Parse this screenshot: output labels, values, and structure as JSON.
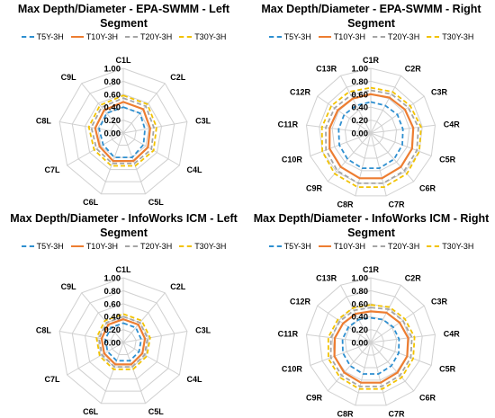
{
  "chart_data": [
    {
      "type": "radar",
      "title": "Max Depth/Diameter - EPA-SWMM - Left Segment",
      "axes": [
        "C1L",
        "C2L",
        "C3L",
        "C4L",
        "C5L",
        "C6L",
        "C7L",
        "C8L",
        "C9L"
      ],
      "rlim": [
        0,
        1
      ],
      "ticks": [
        "0.00",
        "0.20",
        "0.40",
        "0.60",
        "0.80",
        "1.00"
      ],
      "legend_position": "top",
      "grid": true,
      "series": [
        {
          "name": "T5Y-3H",
          "color": "#2e8fd0",
          "dash": "dashed",
          "values": [
            0.4,
            0.4,
            0.34,
            0.36,
            0.4,
            0.4,
            0.36,
            0.38,
            0.4
          ]
        },
        {
          "name": "T10Y-3H",
          "color": "#ed7d31",
          "dash": "solid",
          "values": [
            0.48,
            0.48,
            0.42,
            0.44,
            0.46,
            0.46,
            0.42,
            0.44,
            0.46
          ]
        },
        {
          "name": "T20Y-3H",
          "color": "#a5a5a5",
          "dash": "dashed",
          "values": [
            0.54,
            0.54,
            0.48,
            0.5,
            0.5,
            0.5,
            0.48,
            0.5,
            0.52
          ]
        },
        {
          "name": "T30Y-3H",
          "color": "#f2c200",
          "dash": "dashed",
          "values": [
            0.58,
            0.58,
            0.52,
            0.54,
            0.54,
            0.54,
            0.52,
            0.54,
            0.56
          ]
        }
      ]
    },
    {
      "type": "radar",
      "title": "Max Depth/Diameter - EPA-SWMM - Right Segment",
      "axes": [
        "C1R",
        "C2R",
        "C3R",
        "C4R",
        "C5R",
        "C6R",
        "C7R",
        "C8R",
        "C9R",
        "C10R",
        "C11R",
        "C12R",
        "C13R"
      ],
      "rlim": [
        0,
        1
      ],
      "ticks": [
        "0.00",
        "0.20",
        "0.40",
        "0.60",
        "0.80",
        "1.00"
      ],
      "legend_position": "top",
      "grid": true,
      "series": [
        {
          "name": "T5Y-3H",
          "color": "#2e8fd0",
          "dash": "dashed",
          "values": [
            0.48,
            0.48,
            0.5,
            0.5,
            0.52,
            0.54,
            0.56,
            0.56,
            0.54,
            0.52,
            0.5,
            0.5,
            0.48
          ]
        },
        {
          "name": "T10Y-3H",
          "color": "#ed7d31",
          "dash": "solid",
          "values": [
            0.6,
            0.62,
            0.64,
            0.66,
            0.68,
            0.7,
            0.72,
            0.72,
            0.7,
            0.68,
            0.64,
            0.62,
            0.6
          ]
        },
        {
          "name": "T20Y-3H",
          "color": "#a5a5a5",
          "dash": "dashed",
          "values": [
            0.66,
            0.68,
            0.7,
            0.74,
            0.76,
            0.78,
            0.8,
            0.8,
            0.78,
            0.74,
            0.7,
            0.68,
            0.66
          ]
        },
        {
          "name": "T30Y-3H",
          "color": "#f2c200",
          "dash": "dashed",
          "values": [
            0.7,
            0.72,
            0.74,
            0.78,
            0.8,
            0.84,
            0.86,
            0.86,
            0.84,
            0.8,
            0.76,
            0.74,
            0.72
          ]
        }
      ]
    },
    {
      "type": "radar",
      "title": "Max Depth/Diameter - InfoWorks ICM - Left Segment",
      "axes": [
        "C1L",
        "C2L",
        "C3L",
        "C4L",
        "C5L",
        "C6L",
        "C7L",
        "C8L",
        "C9L"
      ],
      "rlim": [
        0,
        1
      ],
      "ticks": [
        "0.00",
        "0.20",
        "0.40",
        "0.60",
        "0.80",
        "1.00"
      ],
      "legend_position": "top",
      "grid": true,
      "series": [
        {
          "name": "T5Y-3H",
          "color": "#2e8fd0",
          "dash": "dashed",
          "values": [
            0.3,
            0.3,
            0.28,
            0.28,
            0.3,
            0.3,
            0.28,
            0.28,
            0.3
          ]
        },
        {
          "name": "T10Y-3H",
          "color": "#ed7d31",
          "dash": "solid",
          "values": [
            0.36,
            0.36,
            0.34,
            0.34,
            0.36,
            0.36,
            0.34,
            0.34,
            0.36
          ]
        },
        {
          "name": "T20Y-3H",
          "color": "#a5a5a5",
          "dash": "dashed",
          "values": [
            0.4,
            0.4,
            0.38,
            0.38,
            0.4,
            0.4,
            0.38,
            0.38,
            0.4
          ]
        },
        {
          "name": "T30Y-3H",
          "color": "#f2c200",
          "dash": "dashed",
          "values": [
            0.44,
            0.44,
            0.42,
            0.42,
            0.44,
            0.44,
            0.42,
            0.42,
            0.44
          ]
        }
      ]
    },
    {
      "type": "radar",
      "title": "Max Depth/Diameter - InfoWorks ICM - Right Segment",
      "axes": [
        "C1R",
        "C2R",
        "C3R",
        "C4R",
        "C5R",
        "C6R",
        "C7R",
        "C8R",
        "C9R",
        "C10R",
        "C11R",
        "C12R",
        "C13R"
      ],
      "rlim": [
        0,
        1
      ],
      "ticks": [
        "0.00",
        "0.20",
        "0.40",
        "0.60",
        "0.80",
        "1.00"
      ],
      "legend_position": "top",
      "grid": true,
      "series": [
        {
          "name": "T5Y-3H",
          "color": "#2e8fd0",
          "dash": "dashed",
          "values": [
            0.38,
            0.4,
            0.42,
            0.44,
            0.46,
            0.48,
            0.5,
            0.5,
            0.48,
            0.46,
            0.44,
            0.42,
            0.4
          ]
        },
        {
          "name": "T10Y-3H",
          "color": "#ed7d31",
          "dash": "solid",
          "values": [
            0.48,
            0.52,
            0.54,
            0.58,
            0.6,
            0.62,
            0.64,
            0.64,
            0.62,
            0.6,
            0.56,
            0.52,
            0.5
          ]
        },
        {
          "name": "T20Y-3H",
          "color": "#a5a5a5",
          "dash": "dashed",
          "values": [
            0.54,
            0.58,
            0.6,
            0.64,
            0.66,
            0.68,
            0.7,
            0.7,
            0.68,
            0.66,
            0.62,
            0.58,
            0.56
          ]
        },
        {
          "name": "T30Y-3H",
          "color": "#f2c200",
          "dash": "dashed",
          "values": [
            0.58,
            0.62,
            0.64,
            0.68,
            0.7,
            0.72,
            0.74,
            0.74,
            0.72,
            0.7,
            0.66,
            0.62,
            0.6
          ]
        }
      ]
    }
  ]
}
